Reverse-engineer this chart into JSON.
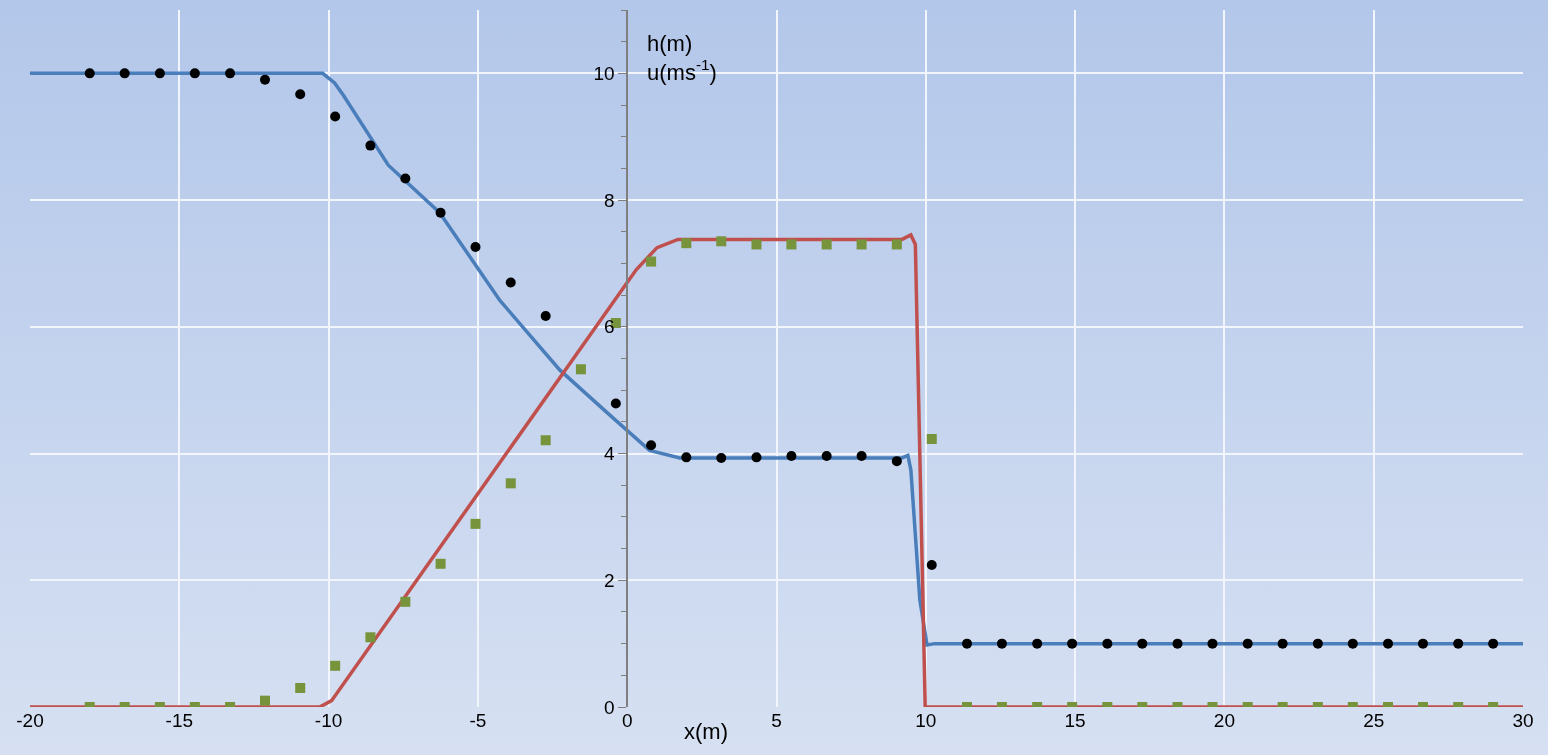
{
  "chart_data": {
    "type": "line",
    "xlabel": "x(m)",
    "ylabel": "h(m)\nu(ms$^{-1}$)",
    "xlim": [
      -20,
      30
    ],
    "xticks": [
      -20,
      -15,
      -10,
      -5,
      0,
      5,
      10,
      15,
      20,
      25,
      30
    ],
    "ylim": [
      0,
      11
    ],
    "yticks": [
      0,
      2,
      4,
      6,
      8,
      10
    ],
    "grid": true,
    "legend": false,
    "series": [
      {
        "color": "#4a7ebb",
        "marker": "none",
        "x": [
          -20,
          -10.2,
          -9.8,
          -9.5,
          -8,
          -6.28,
          -4.27,
          -2.26,
          -0.59,
          0.75,
          1.76,
          9.2,
          9.4,
          9.5,
          9.8,
          10.04,
          10.3,
          30
        ],
        "values": [
          10,
          10,
          9.85,
          9.65,
          8.55,
          7.8,
          6.42,
          5.32,
          4.61,
          4.05,
          3.93,
          3.93,
          3.97,
          3.74,
          1.69,
          0.98,
          1.0,
          1.0
        ]
      },
      {
        "color": "#c0504d",
        "marker": "none",
        "x": [
          -20,
          -10.3,
          -9.9,
          0.3,
          1,
          1.7,
          9.2,
          9.5,
          9.65,
          9.98,
          30
        ],
        "values": [
          0,
          0,
          0.1,
          6.9,
          7.25,
          7.38,
          7.38,
          7.45,
          7.3,
          0,
          0
        ]
      },
      {
        "type": "scatter",
        "color": "#000000",
        "marker": "circle",
        "x": [
          -18,
          -16.83,
          -15.65,
          -14.48,
          -13.3,
          -12.13,
          -10.95,
          -9.78,
          -8.6,
          -7.43,
          -6.25,
          -5.08,
          -3.9,
          -2.73,
          -1.55,
          -0.38,
          0.8,
          1.98,
          3.15,
          4.33,
          5.5,
          6.68,
          7.85,
          9.03,
          10.2,
          11.38,
          12.55,
          13.73,
          14.9,
          16.08,
          17.25,
          18.43,
          19.6,
          20.78,
          21.95,
          23.13,
          24.3,
          25.48,
          26.65,
          27.83,
          29
        ],
        "values": [
          10,
          10,
          10,
          10,
          10,
          9.9,
          9.67,
          9.32,
          8.86,
          8.34,
          7.8,
          7.26,
          6.7,
          6.17,
          null,
          4.79,
          4.13,
          3.94,
          3.93,
          3.94,
          3.96,
          3.96,
          3.96,
          3.88,
          2.24,
          1,
          1,
          1,
          1,
          1,
          1,
          1,
          1,
          1,
          1,
          1,
          1,
          1,
          1,
          1,
          1
        ]
      },
      {
        "type": "scatter",
        "color": "#77933c",
        "marker": "square",
        "x": [
          -18,
          -16.83,
          -15.65,
          -14.48,
          -13.3,
          -12.13,
          -10.95,
          -9.78,
          -8.6,
          -7.43,
          -6.25,
          -5.08,
          -3.9,
          -2.73,
          -1.55,
          -0.38,
          0.8,
          1.98,
          3.15,
          4.33,
          5.5,
          6.68,
          7.85,
          9.03,
          10.2,
          11.38,
          12.55,
          13.73,
          14.9,
          16.08,
          17.25,
          18.43,
          19.6,
          20.78,
          21.95,
          23.13,
          24.3,
          25.48,
          26.65,
          27.83,
          29
        ],
        "values": [
          0,
          0,
          0,
          0,
          0,
          0.1,
          0.3,
          0.65,
          1.1,
          1.66,
          2.26,
          2.89,
          3.53,
          4.21,
          5.33,
          6.06,
          7.03,
          7.32,
          7.35,
          7.3,
          7.3,
          7.3,
          7.3,
          7.3,
          4.23,
          0,
          0,
          0,
          0,
          0,
          0,
          0,
          0,
          0,
          0,
          0,
          0,
          0,
          0,
          0,
          0
        ]
      }
    ]
  }
}
